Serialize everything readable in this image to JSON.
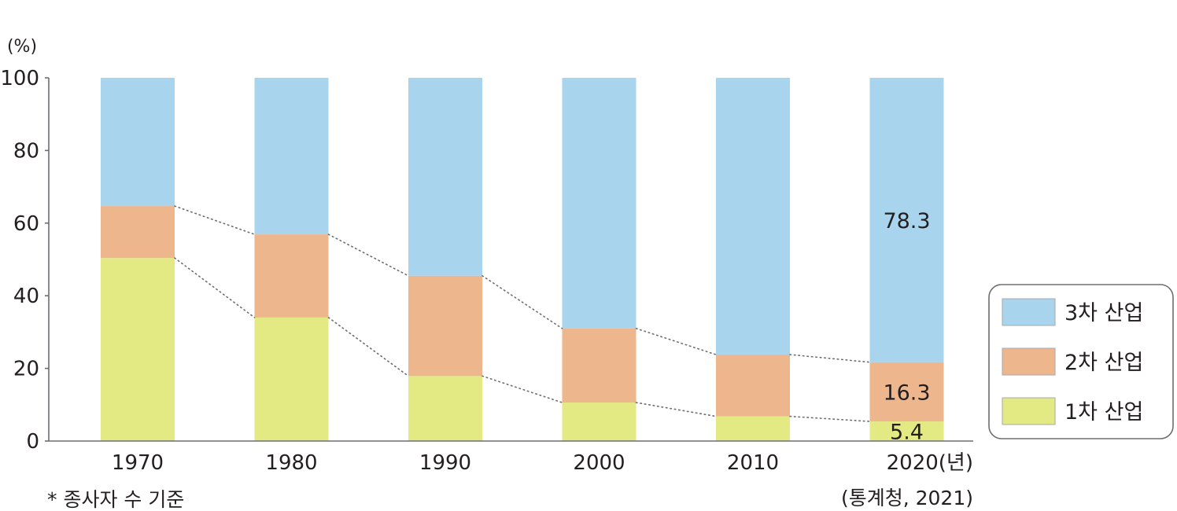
{
  "chart_data": {
    "type": "bar",
    "stacked": true,
    "title": "",
    "ylabel": "(%)",
    "xlabel_suffix": "(년)",
    "ylim": [
      0,
      100
    ],
    "yticks": [
      "0",
      "20",
      "40",
      "60",
      "80",
      "100"
    ],
    "categories": [
      "1970",
      "1980",
      "1990",
      "2000",
      "2010",
      "2020"
    ],
    "series": [
      {
        "name": "1차 산업",
        "color": "#e3e983",
        "values": [
          50.4,
          34.0,
          17.9,
          10.6,
          6.8,
          5.4
        ]
      },
      {
        "name": "2차 산업",
        "color": "#eeb68c",
        "values": [
          14.3,
          22.9,
          27.6,
          20.4,
          17.0,
          16.3
        ]
      },
      {
        "name": "3차 산업",
        "color": "#a9d4ee",
        "values": [
          35.3,
          43.1,
          54.5,
          69.0,
          76.2,
          78.3
        ]
      }
    ],
    "data_labels": [
      {
        "category": "2020",
        "series": "3차 산업",
        "text": "78.3"
      },
      {
        "category": "2020",
        "series": "2차 산업",
        "text": "16.3"
      },
      {
        "category": "2020",
        "series": "1차 산업",
        "text": "5.4"
      }
    ],
    "connector_lines": "dotted",
    "legend_position": "right",
    "grid": false
  },
  "footnote": "* 종사자 수 기준",
  "source": "(통계청, 2021)"
}
